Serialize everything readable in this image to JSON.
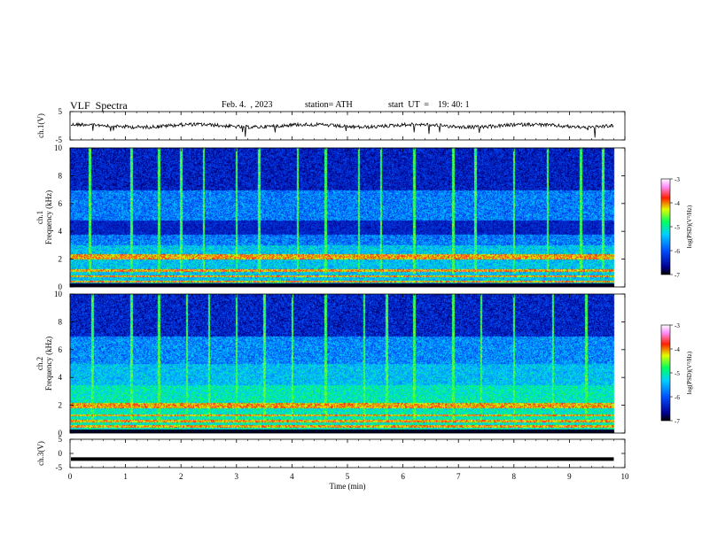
{
  "header": {
    "title": "VLF  Spectra",
    "date": "Feb. 4.  , 2023",
    "station": "station= ATH",
    "start_ut": "start  UT  =    19: 40: 1"
  },
  "chart_data": [
    {
      "type": "line",
      "panel": "ch1-waveform",
      "ylabel": "ch.1(V)",
      "ylim": [
        -5,
        5
      ],
      "yticks": [
        "5",
        "-5"
      ],
      "xlim": [
        0,
        10
      ],
      "trace_level_approx": 0,
      "style": "noisy black waveform near 0 V with occasional downward spikes"
    },
    {
      "type": "heatmap",
      "panel": "ch1-spectrogram",
      "ylabel_lines": [
        "ch.1",
        "Frequency  (kHz)"
      ],
      "ylim": [
        0,
        10
      ],
      "yticks": [
        "0",
        "2",
        "4",
        "6",
        "8",
        "10"
      ],
      "xlim": [
        0,
        10
      ],
      "data_end_min": 9.8,
      "colorbar": {
        "label": "log(PSD)(V²/Hz)",
        "range": [
          -7,
          -3
        ],
        "ticks": [
          "-3",
          "-4",
          "-5",
          "-6",
          "-7"
        ]
      },
      "features": {
        "strong_bands_khz": [
          0.4,
          0.8,
          1.2,
          2.1,
          2.3
        ],
        "dark_band_khz": [
          3.8,
          4.8
        ],
        "gap_khz": [
          0,
          0.2
        ],
        "sferic_times_min": [
          0.35,
          1.1,
          1.6,
          2.0,
          2.4,
          3.0,
          3.4,
          4.1,
          4.6,
          5.2,
          5.6,
          6.2,
          6.9,
          7.3,
          8.0,
          8.6,
          9.2,
          9.6
        ]
      }
    },
    {
      "type": "heatmap",
      "panel": "ch2-spectrogram",
      "ylabel_lines": [
        "ch.2",
        "Frequency  (kHz)"
      ],
      "ylim": [
        0,
        10
      ],
      "yticks": [
        "0",
        "2",
        "4",
        "6",
        "8",
        "10"
      ],
      "xlim": [
        0,
        10
      ],
      "data_end_min": 9.8,
      "colorbar": {
        "label": "log(PSD)(V²/Hz)",
        "range": [
          -7,
          -3
        ],
        "ticks": [
          "-3",
          "-4",
          "-5",
          "-6",
          "-7"
        ]
      },
      "features": {
        "strong_bands_khz": [
          0.5,
          0.9,
          1.3,
          1.9,
          2.1
        ],
        "gap_khz": [
          0,
          0.2
        ],
        "sferic_times_min": [
          0.4,
          1.1,
          1.6,
          2.1,
          2.5,
          3.0,
          3.5,
          4.0,
          4.6,
          5.3,
          5.7,
          6.2,
          6.9,
          7.4,
          8.0,
          8.7,
          9.3
        ]
      }
    },
    {
      "type": "line",
      "panel": "ch3-waveform",
      "ylabel": "ch.3(V)",
      "ylim": [
        -5,
        5
      ],
      "yticks": [
        "5",
        "0",
        "-5"
      ],
      "xlim": [
        0,
        10
      ],
      "xlabel": "Time  (min)",
      "xticks": [
        "0",
        "1",
        "2",
        "3",
        "4",
        "5",
        "6",
        "7",
        "8",
        "9",
        "10"
      ],
      "trace_level_approx": -2,
      "style": "thick flat black trace"
    }
  ]
}
